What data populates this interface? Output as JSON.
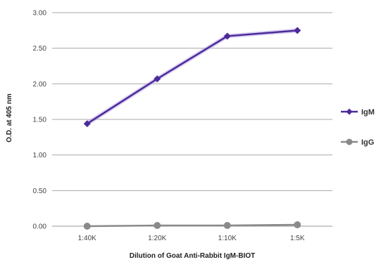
{
  "chart_data": {
    "type": "line",
    "categories": [
      "1:40K",
      "1:20K",
      "1:10K",
      "1:5K"
    ],
    "series": [
      {
        "name": "IgM",
        "values": [
          1.44,
          2.07,
          2.67,
          2.75
        ],
        "color": "#4b2a9a",
        "marker": "diamond"
      },
      {
        "name": "IgG",
        "values": [
          0.0,
          0.01,
          0.01,
          0.02
        ],
        "color": "#8a8a8a",
        "marker": "circle"
      }
    ],
    "title": "",
    "xlabel": "Dilution of Goat Anti-Rabbit IgM-BIOT",
    "ylabel": "O.D. at 405 nm",
    "ylim": [
      0,
      3
    ],
    "yticks": [
      "0.00",
      "0.50",
      "1.00",
      "1.50",
      "2.00",
      "2.50",
      "3.00"
    ],
    "grid": true,
    "legend": "right"
  }
}
